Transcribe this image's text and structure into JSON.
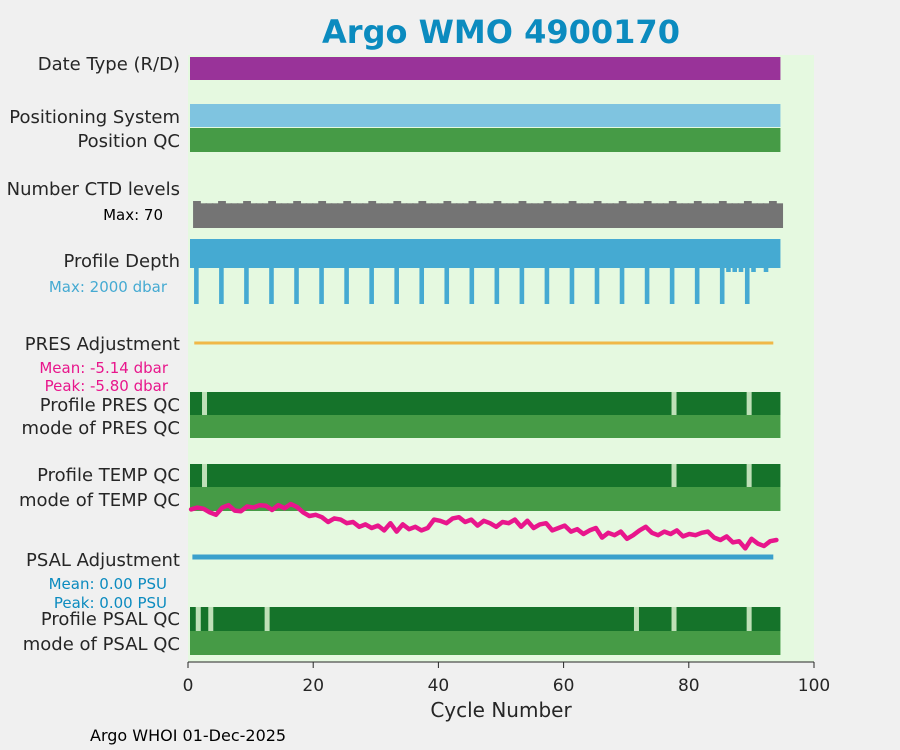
{
  "chart_data": {
    "type": "bar",
    "title": "Argo WMO 4900170",
    "xlabel": "Cycle Number",
    "xlim": [
      0,
      100
    ],
    "xticks": [
      "0",
      "20",
      "40",
      "60",
      "80",
      "100"
    ],
    "footer": "Argo WHOI 01-Dec-2025",
    "last_cycle": 94,
    "rows": {
      "date_type": {
        "label": "Date Type (R/D)",
        "color": "#993399"
      },
      "positioning_system": {
        "label": "Positioning System",
        "color": "#7fc4e0"
      },
      "position_qc": {
        "label": "Position QC",
        "color": "#469b46"
      },
      "ctd_levels": {
        "label": "Number CTD levels",
        "max_label": "Max: 70",
        "max_value": 70,
        "typical_value": 64,
        "color": "#747474"
      },
      "profile_depth": {
        "label": "Profile Depth",
        "max_label": "Max: 2000 dbar",
        "max_value": 2000,
        "color": "#45aad2",
        "deep_profile_cycles": [
          1,
          5,
          9,
          13,
          17,
          21,
          25,
          29,
          33,
          37,
          41,
          45,
          49,
          53,
          57,
          61,
          65,
          69,
          73,
          77,
          81,
          85,
          89
        ],
        "shallow_profile_cycles": [
          86,
          87,
          88,
          90,
          92
        ]
      },
      "pres_adjustment": {
        "label": "PRES Adjustment",
        "mean_label": "Mean: -5.14 dbar",
        "peak_label": "Peak: -5.80 dbar",
        "color": "#f0b848",
        "note_color": "#e8168c"
      },
      "profile_pres_qc": {
        "label": "Profile PRES QC",
        "color": "#15732a",
        "gap_cycles": [
          2,
          77,
          89
        ]
      },
      "mode_pres_qc": {
        "label": "mode of PRES QC",
        "color": "#469b46"
      },
      "profile_temp_qc": {
        "label": "Profile TEMP QC",
        "color": "#15732a",
        "gap_cycles": [
          2,
          77,
          89
        ]
      },
      "mode_temp_qc": {
        "label": "mode of TEMP QC",
        "color": "#469b46"
      },
      "temp_trace": {
        "color": "#e8168c",
        "values": [
          0.45,
          0.3,
          0.4,
          0.7,
          0.9,
          0.3,
          0.1,
          0.55,
          0.6,
          0.2,
          0.3,
          0.1,
          0.15,
          0.5,
          0.1,
          0.35,
          0.0,
          0.25,
          0.7,
          1.0,
          0.9,
          1.1,
          1.5,
          1.2,
          1.3,
          1.6,
          1.5,
          1.9,
          1.7,
          2.0,
          1.8,
          2.2,
          1.6,
          2.3,
          1.7,
          2.1,
          1.9,
          2.2,
          2.0,
          1.3,
          1.4,
          1.6,
          1.2,
          1.1,
          1.5,
          1.3,
          1.8,
          1.4,
          1.6,
          1.9,
          1.5,
          1.6,
          1.3,
          1.9,
          1.4,
          2.0,
          1.7,
          1.6,
          2.2,
          2.0,
          1.8,
          2.3,
          2.1,
          2.5,
          2.2,
          2.0,
          2.8,
          2.4,
          2.6,
          2.3,
          2.9,
          2.6,
          2.2,
          1.9,
          2.4,
          2.6,
          2.3,
          2.5,
          2.2,
          2.7,
          2.5,
          2.6,
          2.4,
          2.3,
          2.8,
          3.0,
          2.7,
          3.2,
          3.1,
          3.7,
          2.9,
          3.3,
          3.5,
          3.1,
          3.0
        ]
      },
      "psal_adjustment": {
        "label": "PSAL Adjustment",
        "mean_label": "Mean: 0.00 PSU",
        "peak_label": "Peak: 0.00 PSU",
        "color": "#3aa0cc",
        "note_color": "#0b8bbf"
      },
      "profile_psal_qc": {
        "label": "Profile PSAL QC",
        "color": "#15732a",
        "gap_cycles": [
          1,
          3,
          12,
          71,
          77,
          89
        ]
      },
      "mode_psal_qc": {
        "label": "mode of PSAL QC",
        "color": "#469b46"
      }
    },
    "colors": {
      "plot_bg": "#e5f9e0",
      "gap": "#bfe0b8",
      "axis": "#262626"
    }
  }
}
